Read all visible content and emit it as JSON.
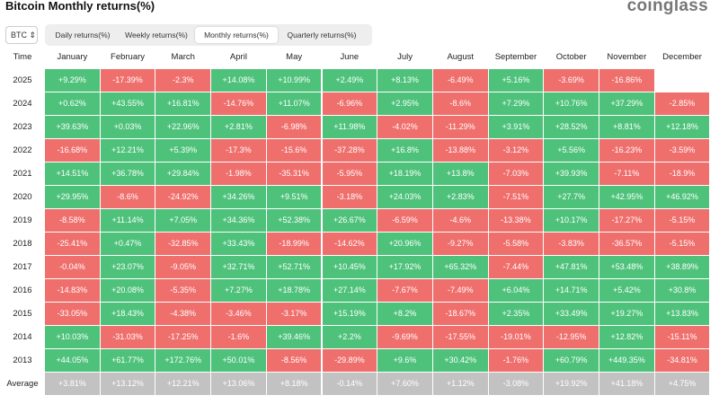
{
  "header": {
    "title": "Bitcoin Monthly returns(%)",
    "logo": "coinglass"
  },
  "controls": {
    "asset": "BTC",
    "tabs": [
      "Daily returns(%)",
      "Weekly returns(%)",
      "Monthly returns(%)",
      "Quarterly returns(%)"
    ],
    "active_tab": 2
  },
  "table": {
    "columns": [
      "Time",
      "January",
      "February",
      "March",
      "April",
      "May",
      "June",
      "July",
      "August",
      "September",
      "October",
      "November",
      "December"
    ],
    "rows": [
      {
        "label": "2025",
        "cells": [
          "+9.29%",
          "-17.39%",
          "-2.3%",
          "+14.08%",
          "+10.99%",
          "+2.49%",
          "+8.13%",
          "-6.49%",
          "+5.16%",
          "-3.69%",
          "-16.86%",
          null
        ]
      },
      {
        "label": "2024",
        "cells": [
          "+0.62%",
          "+43.55%",
          "+16.81%",
          "-14.76%",
          "+11.07%",
          "-6.96%",
          "+2.95%",
          "-8.6%",
          "+7.29%",
          "+10.76%",
          "+37.29%",
          "-2.85%"
        ]
      },
      {
        "label": "2023",
        "cells": [
          "+39.63%",
          "+0.03%",
          "+22.96%",
          "+2.81%",
          "-6.98%",
          "+11.98%",
          "-4.02%",
          "-11.29%",
          "+3.91%",
          "+28.52%",
          "+8.81%",
          "+12.18%"
        ]
      },
      {
        "label": "2022",
        "cells": [
          "-16.68%",
          "+12.21%",
          "+5.39%",
          "-17.3%",
          "-15.6%",
          "-37.28%",
          "+16.8%",
          "-13.88%",
          "-3.12%",
          "+5.56%",
          "-16.23%",
          "-3.59%"
        ]
      },
      {
        "label": "2021",
        "cells": [
          "+14.51%",
          "+36.78%",
          "+29.84%",
          "-1.98%",
          "-35.31%",
          "-5.95%",
          "+18.19%",
          "+13.8%",
          "-7.03%",
          "+39.93%",
          "-7.11%",
          "-18.9%"
        ]
      },
      {
        "label": "2020",
        "cells": [
          "+29.95%",
          "-8.6%",
          "-24.92%",
          "+34.26%",
          "+9.51%",
          "-3.18%",
          "+24.03%",
          "+2.83%",
          "-7.51%",
          "+27.7%",
          "+42.95%",
          "+46.92%"
        ]
      },
      {
        "label": "2019",
        "cells": [
          "-8.58%",
          "+11.14%",
          "+7.05%",
          "+34.36%",
          "+52.38%",
          "+26.67%",
          "-6.59%",
          "-4.6%",
          "-13.38%",
          "+10.17%",
          "-17.27%",
          "-5.15%"
        ]
      },
      {
        "label": "2018",
        "cells": [
          "-25.41%",
          "+0.47%",
          "-32.85%",
          "+33.43%",
          "-18.99%",
          "-14.62%",
          "+20.96%",
          "-9.27%",
          "-5.58%",
          "-3.83%",
          "-36.57%",
          "-5.15%"
        ]
      },
      {
        "label": "2017",
        "cells": [
          "-0.04%",
          "+23.07%",
          "-9.05%",
          "+32.71%",
          "+52.71%",
          "+10.45%",
          "+17.92%",
          "+65.32%",
          "-7.44%",
          "+47.81%",
          "+53.48%",
          "+38.89%"
        ]
      },
      {
        "label": "2016",
        "cells": [
          "-14.83%",
          "+20.08%",
          "-5.35%",
          "+7.27%",
          "+18.78%",
          "+27.14%",
          "-7.67%",
          "-7.49%",
          "+6.04%",
          "+14.71%",
          "+5.42%",
          "+30.8%"
        ]
      },
      {
        "label": "2015",
        "cells": [
          "-33.05%",
          "+18.43%",
          "-4.38%",
          "-3.46%",
          "-3.17%",
          "+15.19%",
          "+8.2%",
          "-18.67%",
          "+2.35%",
          "+33.49%",
          "+19.27%",
          "+13.83%"
        ]
      },
      {
        "label": "2014",
        "cells": [
          "+10.03%",
          "-31.03%",
          "-17.25%",
          "-1.6%",
          "+39.46%",
          "+2.2%",
          "-9.69%",
          "-17.55%",
          "-19.01%",
          "-12.95%",
          "+12.82%",
          "-15.11%"
        ]
      },
      {
        "label": "2013",
        "cells": [
          "+44.05%",
          "+61.77%",
          "+172.76%",
          "+50.01%",
          "-8.56%",
          "-29.89%",
          "+9.6%",
          "+30.42%",
          "-1.76%",
          "+60.79%",
          "+449.35%",
          "-34.81%"
        ]
      }
    ],
    "average": {
      "label": "Average",
      "cells": [
        "+3.81%",
        "+13.12%",
        "+12.21%",
        "+13.06%",
        "+8.18%",
        "-0.14%",
        "+7.60%",
        "+1.12%",
        "-3.08%",
        "+19.92%",
        "+41.18%",
        "+4.75%"
      ]
    }
  }
}
